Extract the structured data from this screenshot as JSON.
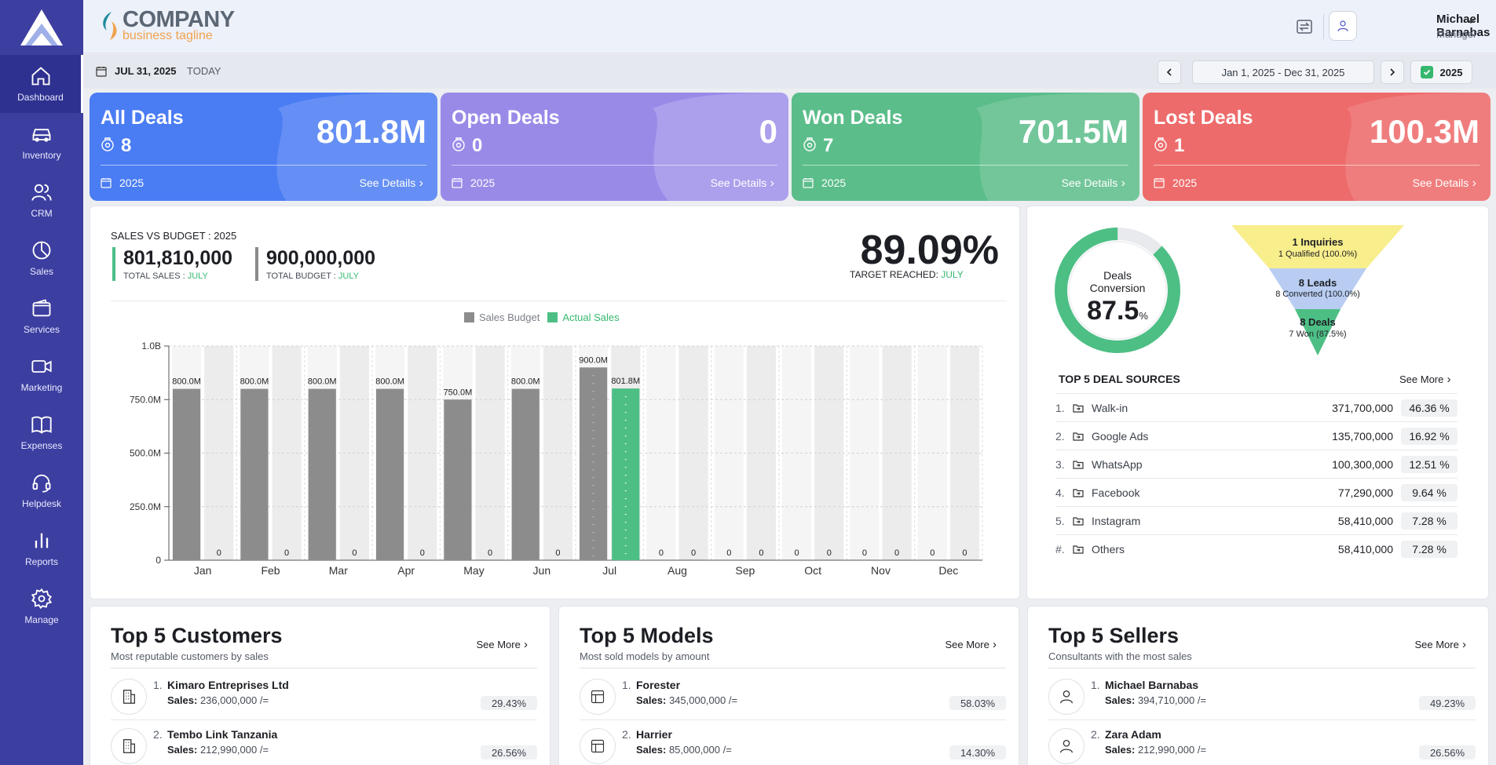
{
  "brand": {
    "name": "COMPANY",
    "tagline": "business tagline"
  },
  "nav": [
    {
      "label": "Dashboard",
      "icon": "home-icon"
    },
    {
      "label": "Inventory",
      "icon": "car-icon"
    },
    {
      "label": "CRM",
      "icon": "users-icon"
    },
    {
      "label": "Sales",
      "icon": "pie-chart-icon"
    },
    {
      "label": "Services",
      "icon": "wallet-icon"
    },
    {
      "label": "Marketing",
      "icon": "video-icon"
    },
    {
      "label": "Expenses",
      "icon": "book-icon"
    },
    {
      "label": "Helpdesk",
      "icon": "headset-icon"
    },
    {
      "label": "Reports",
      "icon": "bar-chart-icon"
    },
    {
      "label": "Manage",
      "icon": "gear-icon"
    }
  ],
  "user": {
    "name": "Michael Barnabas",
    "role": "Manager"
  },
  "datebar": {
    "date": "JUL 31, 2025",
    "today": "TODAY",
    "range": "Jan 1, 2025 - Dec 31, 2025",
    "year": "2025"
  },
  "kpis": [
    {
      "title": "All Deals",
      "count": "8",
      "value": "801.8M",
      "year": "2025",
      "see": "See Details",
      "color": "#4a7cf3"
    },
    {
      "title": "Open Deals",
      "count": "0",
      "value": "0",
      "year": "2025",
      "see": "See Details",
      "color": "#9a8ae8"
    },
    {
      "title": "Won Deals",
      "count": "7",
      "value": "701.5M",
      "year": "2025",
      "see": "See Details",
      "color": "#5bbd8a"
    },
    {
      "title": "Lost Deals",
      "count": "1",
      "value": "100.3M",
      "year": "2025",
      "see": "See Details",
      "color": "#ee6b6b"
    }
  ],
  "sales_budget": {
    "title": "SALES VS BUDGET : 2025",
    "total_sales": "801,810,000",
    "total_sales_label": "TOTAL SALES :",
    "total_budget": "900,000,000",
    "total_budget_label": "TOTAL BUDGET :",
    "month": "JULY",
    "target": "89.09%",
    "target_label": "TARGET REACHED:"
  },
  "chart_data": {
    "type": "bar",
    "categories": [
      "Jan",
      "Feb",
      "Mar",
      "Apr",
      "May",
      "Jun",
      "Jul",
      "Aug",
      "Sep",
      "Oct",
      "Nov",
      "Dec"
    ],
    "series": [
      {
        "name": "Sales Budget",
        "color": "#8c8c8c",
        "values": [
          800,
          800,
          800,
          800,
          750,
          800,
          900,
          0,
          0,
          0,
          0,
          0
        ]
      },
      {
        "name": "Actual Sales",
        "color": "#4dbf85",
        "values": [
          0,
          0,
          0,
          0,
          0,
          0,
          801.8,
          0,
          0,
          0,
          0,
          0
        ]
      }
    ],
    "data_labels": {
      "budget": [
        "800.0M",
        "800.0M",
        "800.0M",
        "800.0M",
        "750.0M",
        "800.0M",
        "900.0M",
        "0",
        "0",
        "0",
        "0",
        "0"
      ],
      "actual": [
        "0",
        "0",
        "0",
        "0",
        "0",
        "0",
        "801.8M",
        "0",
        "0",
        "0",
        "0",
        "0"
      ]
    },
    "yticks": [
      "0",
      "250.0M",
      "500.0M",
      "750.0M",
      "1.0B"
    ],
    "ylim": [
      0,
      1000
    ],
    "legend_position": "top-center",
    "grid": true
  },
  "conversion": {
    "label_line1": "Deals",
    "label_line2": "Conversion",
    "value": "87.5",
    "unit": "%",
    "fraction": 0.875
  },
  "funnel": [
    {
      "title": "1 Inquiries",
      "sub": "1 Qualified (100.0%)"
    },
    {
      "title": "8 Leads",
      "sub": "8 Converted (100.0%)"
    },
    {
      "title": "8 Deals",
      "sub": "7 Won (87.5%)"
    }
  ],
  "sources": {
    "title": "TOP 5 DEAL SOURCES",
    "more": "See More",
    "rows": [
      {
        "num": "1.",
        "name": "Walk-in",
        "amount": "371,700,000",
        "pct": "46.36 %"
      },
      {
        "num": "2.",
        "name": "Google Ads",
        "amount": "135,700,000",
        "pct": "16.92 %"
      },
      {
        "num": "3.",
        "name": "WhatsApp",
        "amount": "100,300,000",
        "pct": "12.51 %"
      },
      {
        "num": "4.",
        "name": "Facebook",
        "amount": "77,290,000",
        "pct": "9.64 %"
      },
      {
        "num": "5.",
        "name": "Instagram",
        "amount": "58,410,000",
        "pct": "7.28 %"
      },
      {
        "num": "#.",
        "name": "Others",
        "amount": "58,410,000",
        "pct": "7.28 %"
      }
    ]
  },
  "customers": {
    "title": "Top 5 Customers",
    "sub": "Most reputable customers by sales",
    "more": "See More",
    "items": [
      {
        "num": "1.",
        "name": "Kimaro Entreprises Ltd",
        "sales_label": "Sales:",
        "sales": "236,000,000 /=",
        "pct": "29.43%"
      },
      {
        "num": "2.",
        "name": "Tembo Link Tanzania",
        "sales_label": "Sales:",
        "sales": "212,990,000 /=",
        "pct": "26.56%"
      }
    ]
  },
  "models": {
    "title": "Top 5 Models",
    "sub": "Most sold models by amount",
    "more": "See More",
    "items": [
      {
        "num": "1.",
        "name": "Forester",
        "sales_label": "Sales:",
        "sales": "345,000,000 /=",
        "pct": "58.03%"
      },
      {
        "num": "2.",
        "name": "Harrier",
        "sales_label": "Sales:",
        "sales": "85,000,000 /=",
        "pct": "14.30%"
      }
    ]
  },
  "sellers": {
    "title": "Top 5 Sellers",
    "sub": "Consultants with the most sales",
    "more": "See More",
    "items": [
      {
        "num": "1.",
        "name": "Michael Barnabas",
        "sales_label": "Sales:",
        "sales": "394,710,000 /=",
        "pct": "49.23%"
      },
      {
        "num": "2.",
        "name": "Zara Adam",
        "sales_label": "Sales:",
        "sales": "212,990,000 /=",
        "pct": "26.56%"
      }
    ]
  }
}
